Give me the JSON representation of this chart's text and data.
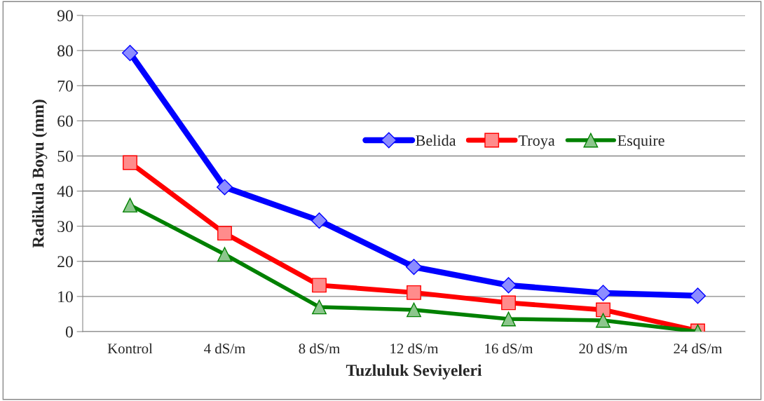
{
  "chart_data": {
    "type": "line",
    "xlabel": "Tuzluluk Seviyeleri",
    "ylabel": "Radikula Boyu (mm)",
    "categories": [
      "Kontrol",
      "4 dS/m",
      "8 dS/m",
      "12 dS/m",
      "16 dS/m",
      "20 dS/m",
      "24 dS/m"
    ],
    "series": [
      {
        "name": "Belida",
        "color": "#0000ff",
        "marker": "diamond",
        "values": [
          79.3,
          41.1,
          31.6,
          18.4,
          13.2,
          11.0,
          10.2
        ]
      },
      {
        "name": "Troya",
        "color": "#ff0000",
        "marker": "square",
        "values": [
          48.1,
          28.0,
          13.2,
          11.1,
          8.2,
          6.2,
          0.2
        ]
      },
      {
        "name": "Esquire",
        "color": "#008000",
        "marker": "triangle",
        "values": [
          36.0,
          22.0,
          7.0,
          6.2,
          3.6,
          3.2,
          0.0
        ]
      }
    ],
    "ylim": [
      0,
      90
    ],
    "yticks": [
      0,
      10,
      20,
      30,
      40,
      50,
      60,
      70,
      80,
      90
    ],
    "grid": "y",
    "legend": "right",
    "line_style": "solid"
  }
}
